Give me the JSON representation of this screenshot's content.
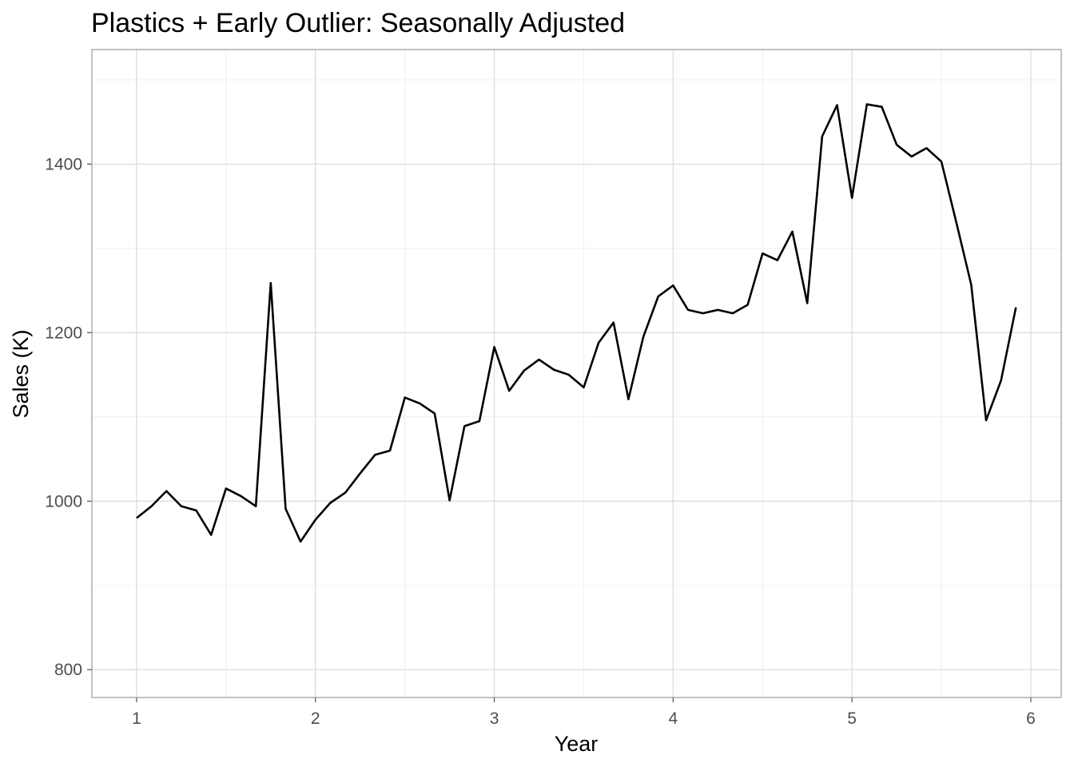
{
  "chart_data": {
    "type": "line",
    "title": "Plastics + Early Outlier: Seasonally Adjusted",
    "xlabel": "Year",
    "ylabel": "Sales (K)",
    "xlim": [
      0.75,
      6.17
    ],
    "ylim": [
      767,
      1536
    ],
    "x_ticks": [
      1,
      2,
      3,
      4,
      5,
      6
    ],
    "x_tick_labels": [
      "1",
      "2",
      "3",
      "4",
      "5",
      "6"
    ],
    "y_ticks": [
      800,
      1000,
      1200,
      1400
    ],
    "y_tick_labels": [
      "800",
      "1000",
      "1200",
      "1400"
    ],
    "grid": true,
    "legend": "none",
    "series": [
      {
        "color": "#000000",
        "x": [
          1.0,
          1.0833,
          1.1667,
          1.25,
          1.3333,
          1.4167,
          1.5,
          1.5833,
          1.6667,
          1.75,
          1.8333,
          1.9167,
          2.0,
          2.0833,
          2.1667,
          2.25,
          2.3333,
          2.4167,
          2.5,
          2.5833,
          2.6667,
          2.75,
          2.8333,
          2.9167,
          3.0,
          3.0833,
          3.1667,
          3.25,
          3.3333,
          3.4167,
          3.5,
          3.5833,
          3.6667,
          3.75,
          3.8333,
          3.9167,
          4.0,
          4.0833,
          4.1667,
          4.25,
          4.3333,
          4.4167,
          4.5,
          4.5833,
          4.6667,
          4.75,
          4.8333,
          4.9167,
          5.0,
          5.0833,
          5.1667,
          5.25,
          5.3333,
          5.4167,
          5.5,
          5.5833,
          5.6667,
          5.75,
          5.8333,
          5.9167
        ],
        "values": [
          980,
          994,
          1012,
          994,
          989,
          960,
          1015,
          1006,
          994,
          1259,
          991,
          952,
          978,
          998,
          1010,
          1033,
          1055,
          1060,
          1123,
          1116,
          1104,
          1001,
          1089,
          1095,
          1183,
          1131,
          1155,
          1168,
          1156,
          1150,
          1135,
          1188,
          1212,
          1121,
          1195,
          1243,
          1256,
          1227,
          1223,
          1227,
          1223,
          1233,
          1294,
          1286,
          1320,
          1235,
          1433,
          1470,
          1360,
          1471,
          1468,
          1423,
          1409,
          1419,
          1403,
          1331,
          1257,
          1096,
          1143,
          1230
        ]
      }
    ]
  }
}
